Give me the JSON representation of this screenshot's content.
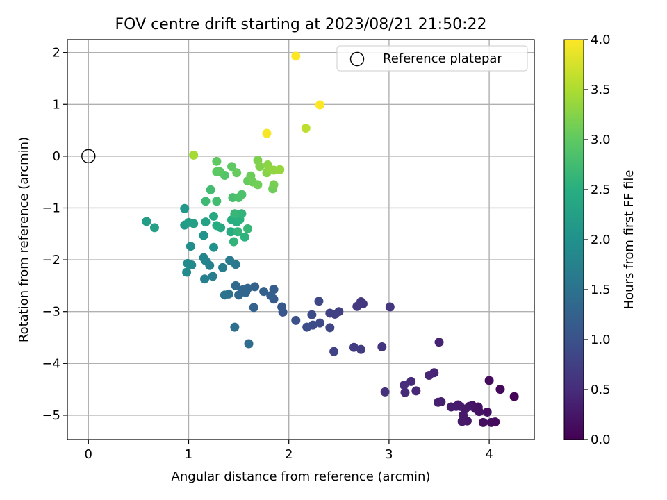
{
  "chart_data": {
    "type": "scatter",
    "title": "FOV centre drift starting at 2023/08/21 21:50:22",
    "xlabel": "Angular distance from reference (arcmin)",
    "ylabel": "Rotation from reference (arcmin)",
    "xlim": [
      -0.21,
      4.45
    ],
    "ylim": [
      -5.47,
      2.25
    ],
    "xticks": [
      "0",
      "1",
      "2",
      "3",
      "4"
    ],
    "yticks": [
      "2",
      "1",
      "0",
      "−1",
      "−2",
      "−3",
      "−4",
      "−5"
    ],
    "grid": true,
    "legend": {
      "placement": "top-right",
      "entries": [
        "Reference platepar"
      ]
    },
    "reference": {
      "x": 0,
      "y": 0
    },
    "colorbar": {
      "label": "Hours from first FF file",
      "range": [
        0.0,
        4.0
      ],
      "ticks": [
        "0.0",
        "0.5",
        "1.0",
        "1.5",
        "2.0",
        "2.5",
        "3.0",
        "3.5",
        "4.0"
      ],
      "colormap": "viridis"
    },
    "points": [
      [
        4.25,
        -4.64,
        0.05
      ],
      [
        4.11,
        -4.5,
        0.08
      ],
      [
        4.0,
        -4.33,
        0.12
      ],
      [
        4.06,
        -5.13,
        0.1
      ],
      [
        4.02,
        -5.14,
        0.12
      ],
      [
        3.98,
        -4.94,
        0.15
      ],
      [
        3.94,
        -5.14,
        0.16
      ],
      [
        3.9,
        -4.93,
        0.18
      ],
      [
        3.89,
        -4.84,
        0.19
      ],
      [
        3.86,
        -4.87,
        0.2
      ],
      [
        3.83,
        -4.81,
        0.22
      ],
      [
        3.8,
        -4.83,
        0.24
      ],
      [
        3.78,
        -5.11,
        0.25
      ],
      [
        3.76,
        -4.88,
        0.26
      ],
      [
        3.74,
        -5.0,
        0.27
      ],
      [
        3.73,
        -5.12,
        0.27
      ],
      [
        3.71,
        -4.83,
        0.29
      ],
      [
        3.69,
        -4.8,
        0.3
      ],
      [
        3.67,
        -4.83,
        0.31
      ],
      [
        3.62,
        -4.84,
        0.32
      ],
      [
        3.52,
        -4.74,
        0.35
      ],
      [
        3.49,
        -4.75,
        0.36
      ],
      [
        3.5,
        -3.59,
        0.38
      ],
      [
        3.45,
        -4.18,
        0.4
      ],
      [
        3.4,
        -4.23,
        0.42
      ],
      [
        3.27,
        -4.53,
        0.45
      ],
      [
        3.22,
        -4.35,
        0.47
      ],
      [
        3.16,
        -4.56,
        0.48
      ],
      [
        3.15,
        -4.42,
        0.5
      ],
      [
        2.96,
        -4.55,
        0.55
      ],
      [
        2.93,
        -3.68,
        0.6
      ],
      [
        3.01,
        -2.91,
        0.62
      ],
      [
        2.74,
        -2.85,
        0.65
      ],
      [
        2.72,
        -2.81,
        0.66
      ],
      [
        2.68,
        -2.9,
        0.68
      ],
      [
        2.72,
        -3.73,
        0.7
      ],
      [
        2.65,
        -3.69,
        0.72
      ],
      [
        2.5,
        -3.0,
        0.75
      ],
      [
        2.46,
        -3.05,
        0.77
      ],
      [
        2.41,
        -3.03,
        0.78
      ],
      [
        2.45,
        -3.77,
        0.8
      ],
      [
        2.41,
        -3.31,
        0.82
      ],
      [
        2.3,
        -2.8,
        0.85
      ],
      [
        2.31,
        -3.22,
        0.88
      ],
      [
        2.24,
        -3.26,
        0.9
      ],
      [
        2.23,
        -3.06,
        0.92
      ],
      [
        2.18,
        -3.3,
        0.95
      ],
      [
        2.07,
        -3.17,
        1.0
      ],
      [
        1.94,
        -3.01,
        1.05
      ],
      [
        1.93,
        -2.91,
        1.1
      ],
      [
        1.85,
        -2.76,
        1.15
      ],
      [
        1.85,
        -2.57,
        1.18
      ],
      [
        1.82,
        -2.69,
        1.2
      ],
      [
        1.75,
        -2.61,
        1.22
      ],
      [
        1.65,
        -2.92,
        1.25
      ],
      [
        1.66,
        -2.52,
        1.27
      ],
      [
        1.59,
        -2.55,
        1.3
      ],
      [
        1.57,
        -2.63,
        1.32
      ],
      [
        1.54,
        -2.58,
        1.33
      ],
      [
        1.5,
        -2.68,
        1.35
      ],
      [
        1.47,
        -2.5,
        1.37
      ],
      [
        1.6,
        -3.62,
        1.4
      ],
      [
        1.46,
        -3.3,
        1.45
      ],
      [
        1.4,
        -2.66,
        1.5
      ],
      [
        1.36,
        -2.68,
        1.52
      ],
      [
        1.47,
        -2.09,
        1.6
      ],
      [
        1.41,
        -2.01,
        1.65
      ],
      [
        1.34,
        -2.15,
        1.68
      ],
      [
        1.24,
        -2.32,
        1.7
      ],
      [
        1.16,
        -2.37,
        1.72
      ],
      [
        1.21,
        -2.11,
        1.75
      ],
      [
        1.17,
        -2.02,
        1.78
      ],
      [
        1.15,
        -1.96,
        1.8
      ],
      [
        1.03,
        -2.1,
        1.85
      ],
      [
        0.98,
        -2.24,
        1.88
      ],
      [
        0.99,
        -2.07,
        1.9
      ],
      [
        1.02,
        -1.74,
        1.95
      ],
      [
        1.25,
        -1.76,
        2.0
      ],
      [
        1.15,
        -1.53,
        2.05
      ],
      [
        0.96,
        -1.01,
        2.1
      ],
      [
        0.96,
        -1.33,
        2.15
      ],
      [
        1.0,
        -1.28,
        2.2
      ],
      [
        1.05,
        -1.3,
        2.25
      ],
      [
        0.58,
        -1.26,
        2.2
      ],
      [
        0.66,
        -1.38,
        2.25
      ],
      [
        1.17,
        -1.27,
        2.3
      ],
      [
        1.32,
        -1.38,
        2.4
      ],
      [
        1.25,
        -1.16,
        2.4
      ],
      [
        1.28,
        -1.34,
        2.45
      ],
      [
        1.42,
        -1.46,
        2.45
      ],
      [
        1.43,
        -1.23,
        2.5
      ],
      [
        1.48,
        -1.27,
        2.5
      ],
      [
        1.51,
        -1.22,
        2.52
      ],
      [
        1.56,
        -1.56,
        2.55
      ],
      [
        1.45,
        -1.65,
        2.6
      ],
      [
        1.53,
        -1.11,
        2.6
      ],
      [
        1.49,
        -1.46,
        2.62
      ],
      [
        1.46,
        -1.11,
        2.65
      ],
      [
        1.59,
        -1.4,
        2.65
      ],
      [
        1.17,
        -0.87,
        2.7
      ],
      [
        1.28,
        -0.87,
        2.75
      ],
      [
        1.22,
        -0.65,
        2.75
      ],
      [
        1.44,
        -0.8,
        2.8
      ],
      [
        1.5,
        -0.8,
        2.85
      ],
      [
        1.53,
        -0.74,
        2.85
      ],
      [
        1.36,
        -0.37,
        2.9
      ],
      [
        1.31,
        -0.3,
        2.95
      ],
      [
        1.28,
        -0.3,
        2.98
      ],
      [
        1.28,
        -0.1,
        3.0
      ],
      [
        1.43,
        -0.2,
        3.0
      ],
      [
        1.48,
        -0.32,
        3.05
      ],
      [
        1.59,
        -0.48,
        3.05
      ],
      [
        1.62,
        -0.38,
        3.08
      ],
      [
        1.64,
        -0.5,
        3.1
      ],
      [
        1.69,
        -0.55,
        3.12
      ],
      [
        1.84,
        -0.63,
        3.1
      ],
      [
        1.85,
        -0.55,
        3.15
      ],
      [
        1.69,
        -0.08,
        3.2
      ],
      [
        1.71,
        -0.2,
        3.22
      ],
      [
        1.78,
        -0.32,
        3.25
      ],
      [
        1.79,
        -0.17,
        3.28
      ],
      [
        1.8,
        -0.23,
        3.3
      ],
      [
        1.85,
        -0.27,
        3.32
      ],
      [
        1.91,
        -0.26,
        3.35
      ],
      [
        1.05,
        0.02,
        3.45
      ],
      [
        2.17,
        0.54,
        3.6
      ],
      [
        1.78,
        0.44,
        3.95
      ],
      [
        2.31,
        0.99,
        4.0
      ],
      [
        2.07,
        1.93,
        4.0
      ]
    ]
  }
}
